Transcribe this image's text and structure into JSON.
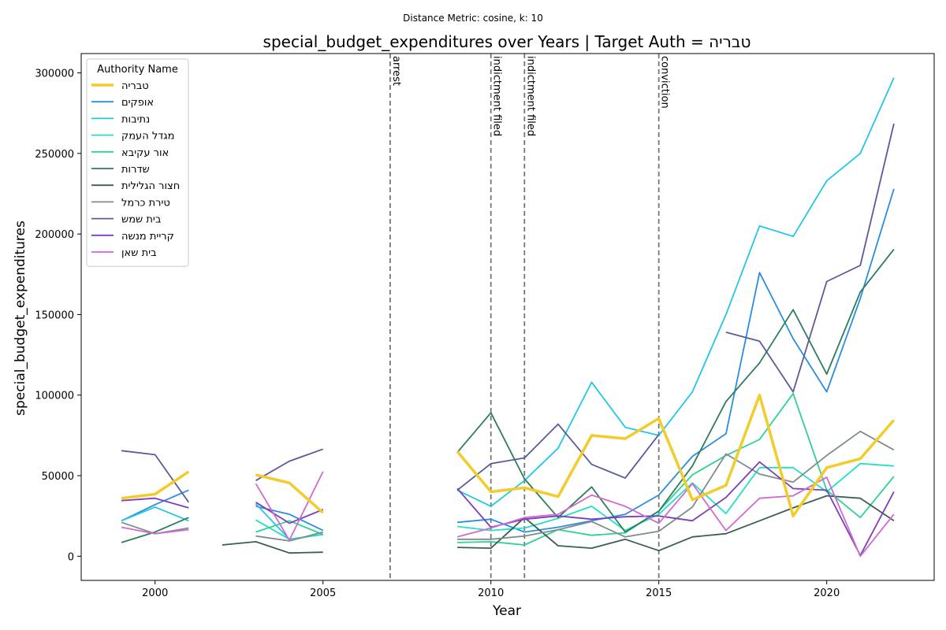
{
  "chart_data": {
    "type": "line",
    "suptitle": "Distance Metric: cosine, k: 10",
    "title": "special_budget_expenditures over Years | Target Auth = טבריה",
    "xlabel": "Year",
    "ylabel": "special_budget_expenditures",
    "xlim": [
      1997.8,
      2023.2
    ],
    "ylim": [
      -15000,
      312000
    ],
    "xticks": [
      2000,
      2005,
      2010,
      2015,
      2020
    ],
    "yticks": [
      0,
      50000,
      100000,
      150000,
      200000,
      250000,
      300000
    ],
    "grid": false,
    "legend": {
      "title": "Authority Name",
      "placement": "top-left"
    },
    "annotations": [
      {
        "x": 2007,
        "label": "arrest"
      },
      {
        "x": 2010,
        "label": "indictment filed"
      },
      {
        "x": 2011,
        "label": "indictment filed"
      },
      {
        "x": 2015,
        "label": "conviction"
      }
    ],
    "x": [
      1999,
      2000,
      2001,
      2002,
      2003,
      2004,
      2005,
      2006,
      2007,
      2008,
      2009,
      2010,
      2011,
      2012,
      2013,
      2014,
      2015,
      2016,
      2017,
      2018,
      2019,
      2020,
      2021,
      2022
    ],
    "series": [
      {
        "name": "טבריה",
        "color": "#f2cc2a",
        "width": 3.5,
        "values": [
          36000,
          38500,
          52500,
          null,
          50500,
          45500,
          27000,
          null,
          null,
          null,
          65000,
          40000,
          42500,
          37000,
          75000,
          73000,
          85500,
          35000,
          44000,
          100000,
          25000,
          55000,
          60500,
          84500
        ]
      },
      {
        "name": "אופקים",
        "color": "#2a8ee0",
        "width": 1.8,
        "values": [
          22000,
          32000,
          41000,
          null,
          31000,
          26000,
          16000,
          null,
          null,
          null,
          21000,
          23000,
          15000,
          18000,
          22000,
          26000,
          38000,
          62000,
          76000,
          176000,
          135000,
          102000,
          160000,
          228000
        ]
      },
      {
        "name": "נתיבות",
        "color": "#22c7e8",
        "width": 1.8,
        "values": [
          22000,
          30500,
          22000,
          null,
          32500,
          10500,
          13500,
          null,
          null,
          null,
          41000,
          31000,
          47000,
          67000,
          108000,
          80000,
          75000,
          102000,
          150000,
          205000,
          198500,
          233000,
          250000,
          297000
        ]
      },
      {
        "name": "מגדל העמק",
        "color": "#22e0c8",
        "width": 1.8,
        "values": [
          null,
          null,
          null,
          null,
          22500,
          10500,
          13500,
          null,
          null,
          null,
          18500,
          16000,
          17500,
          23500,
          31000,
          16000,
          26000,
          45500,
          26500,
          55000,
          55000,
          40000,
          57500,
          56000
        ]
      },
      {
        "name": "אור עקיבא",
        "color": "#2ed291",
        "width": 1.8,
        "values": [
          null,
          null,
          null,
          null,
          15000,
          22000,
          13500,
          null,
          null,
          null,
          8500,
          9000,
          7000,
          16500,
          13000,
          14500,
          28000,
          50500,
          62500,
          72500,
          101000,
          41000,
          24000,
          49500
        ]
      },
      {
        "name": "שדרות",
        "color": "#2e7d5a",
        "width": 1.8,
        "values": [
          8500,
          15000,
          24000,
          null,
          null,
          null,
          null,
          null,
          null,
          null,
          64500,
          89000,
          48000,
          24000,
          43000,
          15000,
          28000,
          56000,
          96000,
          120000,
          153000,
          113000,
          164000,
          190500
        ]
      },
      {
        "name": "חצור הגלילית",
        "color": "#3a5f52",
        "width": 1.8,
        "values": [
          null,
          null,
          null,
          7000,
          9000,
          2000,
          2500,
          null,
          null,
          null,
          5500,
          5000,
          24000,
          6500,
          5000,
          10500,
          3500,
          12000,
          14000,
          22000,
          30000,
          37500,
          36000,
          22000
        ]
      },
      {
        "name": "טירת כרמל",
        "color": "#7f8c8a",
        "width": 1.8,
        "values": [
          21000,
          14000,
          17500,
          null,
          12500,
          9500,
          15000,
          null,
          null,
          null,
          10500,
          10500,
          12500,
          16500,
          21500,
          12000,
          15500,
          30500,
          63500,
          51000,
          46000,
          62500,
          77500,
          66000
        ]
      },
      {
        "name": "בית שמש",
        "color": "#5a5a9c",
        "width": 1.8,
        "values": [
          65500,
          63000,
          33500,
          null,
          47000,
          59000,
          66500,
          null,
          null,
          null,
          41000,
          57500,
          61000,
          82000,
          57000,
          48500,
          75500,
          null,
          139000,
          133500,
          102000,
          170500,
          180500,
          268500
        ]
      },
      {
        "name": "קריית מנשה",
        "color": "#7d3fb8",
        "width": 1.8,
        "values": [
          34500,
          36000,
          30000,
          null,
          33500,
          20500,
          29000,
          null,
          null,
          null,
          42000,
          18000,
          23000,
          25000,
          23000,
          24500,
          25000,
          22000,
          36500,
          58500,
          42000,
          41000,
          500,
          40000
        ]
      },
      {
        "name": "בית שאן",
        "color": "#d06ad0",
        "width": 1.8,
        "values": [
          18000,
          14000,
          16500,
          null,
          45000,
          10000,
          52500,
          null,
          null,
          null,
          12000,
          17500,
          24000,
          26000,
          38000,
          31000,
          20500,
          45000,
          16000,
          36000,
          37500,
          49000,
          0,
          26000
        ]
      }
    ]
  }
}
